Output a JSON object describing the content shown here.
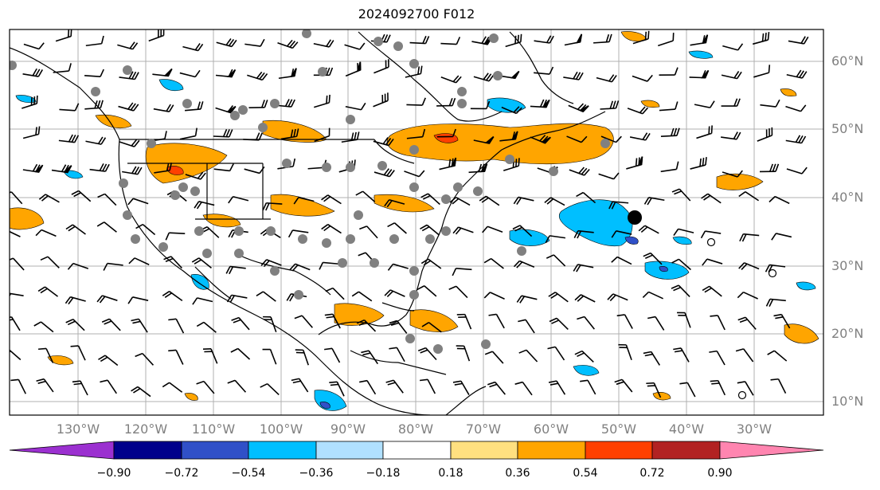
{
  "title": "2024092700 F012",
  "lat_labels": [
    "60°N",
    "50°N",
    "40°N",
    "30°N",
    "20°N",
    "10°N"
  ],
  "lon_labels": [
    "130°W",
    "120°W",
    "110°W",
    "100°W",
    "90°W",
    "80°W",
    "70°W",
    "60°W",
    "50°W",
    "40°W",
    "30°W"
  ],
  "colorbar": {
    "ticks": [
      "−0.90",
      "−0.72",
      "−0.54",
      "−0.36",
      "−0.18",
      "0.18",
      "0.36",
      "0.54",
      "0.72",
      "0.90"
    ],
    "colors": [
      "#9b30d0",
      "#00008b",
      "#3050c8",
      "#00bfff",
      "#b0e0ff",
      "#ffffff",
      "#ffe080",
      "#ffa500",
      "#ff4000",
      "#b22222",
      "#ff85b0"
    ],
    "extend": "both"
  },
  "palette": {
    "positive": [
      "#ffa500",
      "#ff4000",
      "#ffe080"
    ],
    "negative": [
      "#00bfff",
      "#3050c8",
      "#b0e0ff"
    ],
    "grid": "#b0b0b0",
    "station": "#808080"
  }
}
